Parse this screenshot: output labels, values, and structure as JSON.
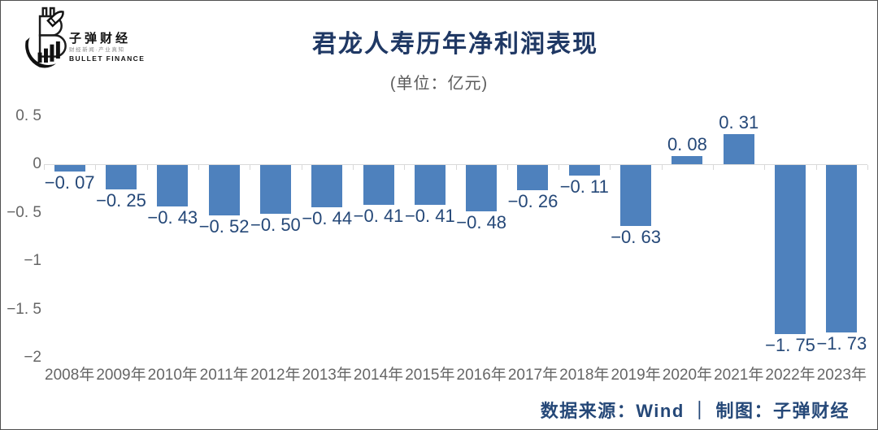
{
  "logo": {
    "name": "子弹财经",
    "tagline": "财经新闻·产业真知",
    "romanized": "BULLET FINANCE"
  },
  "chart_data": {
    "type": "bar",
    "title": "君龙人寿历年净利润表现",
    "subtitle": "(单位：亿元)",
    "unit": "亿元",
    "categories": [
      "2008年",
      "2009年",
      "2010年",
      "2011年",
      "2012年",
      "2013年",
      "2014年",
      "2015年",
      "2016年",
      "2017年",
      "2018年",
      "2019年",
      "2020年",
      "2021年",
      "2022年",
      "2023年"
    ],
    "values": [
      -0.07,
      -0.25,
      -0.43,
      -0.52,
      -0.5,
      -0.44,
      -0.41,
      -0.41,
      -0.48,
      -0.26,
      -0.11,
      -0.63,
      0.08,
      0.31,
      -1.75,
      -1.73
    ],
    "ylim": [
      -2,
      0.5
    ],
    "yticks": [
      0.5,
      0,
      -0.5,
      -1,
      -1.5,
      -2
    ],
    "grid": false,
    "legend": "none",
    "bar_color": "#4E81BD",
    "data_label_color": "#254878",
    "axis_tick_label_color": "#666666",
    "axis_line_color": "#D9D9D9",
    "title_color": "#1F3864",
    "subtitle_color": "#5A5A5A"
  },
  "footer": {
    "source": "数据来源：Wind ｜ 制图：子弹财经",
    "color": "#254878"
  }
}
